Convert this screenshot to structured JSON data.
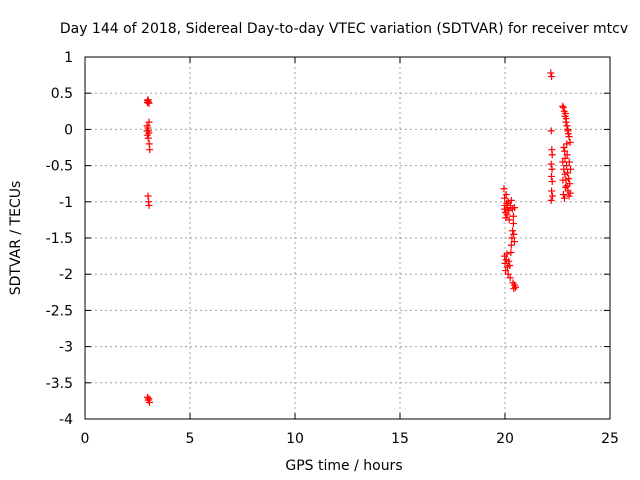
{
  "chart_data": {
    "type": "scatter",
    "title": "Day 144 of 2018, Sidereal Day-to-day VTEC variation (SDTVAR) for receiver mtcv",
    "xlabel": "GPS time / hours",
    "ylabel": "SDTVAR / TECUs",
    "xlim": [
      0,
      25
    ],
    "ylim": [
      -4,
      1
    ],
    "xticks": [
      0,
      5,
      10,
      15,
      20,
      25
    ],
    "yticks": [
      1,
      0.5,
      0,
      -0.5,
      -1,
      -1.5,
      -2,
      -2.5,
      -3,
      -3.5,
      -4
    ],
    "xtick_labels": [
      "0",
      "5",
      "10",
      "15",
      "20",
      "25"
    ],
    "ytick_labels": [
      "1",
      "0.5",
      "0",
      "-0.5",
      "-1",
      "-1.5",
      "-2",
      "-2.5",
      "-3",
      "-3.5",
      "-4"
    ],
    "grid": true,
    "marker": "+",
    "color": "#ff0000",
    "series": [
      {
        "name": "SDTVAR",
        "points": [
          [
            2.98,
            0.4
          ],
          [
            3.02,
            0.38
          ],
          [
            3.05,
            0.36
          ],
          [
            2.97,
            0.37
          ],
          [
            3.0,
            0.41
          ],
          [
            2.96,
            0.05
          ],
          [
            2.99,
            0.02
          ],
          [
            3.02,
            -0.02
          ],
          [
            3.05,
            0.1
          ],
          [
            2.97,
            -0.08
          ],
          [
            3.01,
            -0.12
          ],
          [
            3.04,
            -0.05
          ],
          [
            3.06,
            -0.2
          ],
          [
            3.08,
            -0.28
          ],
          [
            2.95,
            -0.02
          ],
          [
            3.0,
            -0.92
          ],
          [
            3.03,
            -1.0
          ],
          [
            3.05,
            -1.05
          ],
          [
            2.98,
            -3.7
          ],
          [
            3.01,
            -3.74
          ],
          [
            3.04,
            -3.72
          ],
          [
            3.07,
            -3.77
          ],
          [
            19.95,
            -0.82
          ],
          [
            19.98,
            -0.95
          ],
          [
            20.0,
            -1.05
          ],
          [
            20.02,
            -1.15
          ],
          [
            20.04,
            -1.22
          ],
          [
            19.97,
            -1.1
          ],
          [
            20.06,
            -0.9
          ],
          [
            20.08,
            -1.02
          ],
          [
            20.1,
            -1.18
          ],
          [
            20.12,
            -1.08
          ],
          [
            20.15,
            -1.0
          ],
          [
            20.18,
            -1.12
          ],
          [
            20.2,
            -1.25
          ],
          [
            20.25,
            -1.05
          ],
          [
            20.3,
            -0.98
          ],
          [
            20.35,
            -1.1
          ],
          [
            20.4,
            -1.2
          ],
          [
            20.45,
            -1.08
          ],
          [
            19.98,
            -1.75
          ],
          [
            20.0,
            -1.85
          ],
          [
            20.03,
            -1.95
          ],
          [
            20.06,
            -1.8
          ],
          [
            20.09,
            -1.72
          ],
          [
            20.12,
            -1.9
          ],
          [
            20.15,
            -2.0
          ],
          [
            20.18,
            -1.82
          ],
          [
            20.22,
            -1.88
          ],
          [
            20.25,
            -2.05
          ],
          [
            20.28,
            -1.7
          ],
          [
            20.3,
            -1.6
          ],
          [
            20.33,
            -1.5
          ],
          [
            20.36,
            -1.4
          ],
          [
            20.4,
            -1.3
          ],
          [
            20.42,
            -1.45
          ],
          [
            20.45,
            -1.55
          ],
          [
            20.38,
            -2.12
          ],
          [
            20.42,
            -2.2
          ],
          [
            20.45,
            -2.15
          ],
          [
            20.5,
            -2.18
          ],
          [
            22.18,
            0.78
          ],
          [
            22.22,
            0.73
          ],
          [
            22.2,
            -0.02
          ],
          [
            22.23,
            -0.28
          ],
          [
            22.25,
            -0.35
          ],
          [
            22.2,
            -0.48
          ],
          [
            22.24,
            -0.55
          ],
          [
            22.21,
            -0.65
          ],
          [
            22.25,
            -0.72
          ],
          [
            22.22,
            -0.85
          ],
          [
            22.26,
            -0.92
          ],
          [
            22.2,
            -0.98
          ],
          [
            22.75,
            0.32
          ],
          [
            22.78,
            0.3
          ],
          [
            22.82,
            0.25
          ],
          [
            22.86,
            0.18
          ],
          [
            22.9,
            0.1
          ],
          [
            22.95,
            0.05
          ],
          [
            23.0,
            -0.02
          ],
          [
            23.05,
            -0.1
          ],
          [
            23.1,
            -0.18
          ],
          [
            22.88,
            0.22
          ],
          [
            22.92,
            0.15
          ],
          [
            22.98,
            0.0
          ],
          [
            23.02,
            -0.06
          ],
          [
            22.75,
            -0.45
          ],
          [
            22.8,
            -0.55
          ],
          [
            22.85,
            -0.62
          ],
          [
            22.9,
            -0.7
          ],
          [
            22.95,
            -0.78
          ],
          [
            23.0,
            -0.85
          ],
          [
            23.05,
            -0.92
          ],
          [
            23.1,
            -0.88
          ],
          [
            22.78,
            -0.9
          ],
          [
            22.83,
            -0.95
          ],
          [
            22.88,
            -0.8
          ],
          [
            22.93,
            -0.5
          ],
          [
            22.98,
            -0.6
          ],
          [
            23.03,
            -0.68
          ],
          [
            23.08,
            -0.75
          ],
          [
            23.12,
            -0.55
          ],
          [
            22.76,
            -0.7
          ],
          [
            22.86,
            -0.4
          ],
          [
            22.96,
            -0.35
          ],
          [
            23.06,
            -0.45
          ],
          [
            22.8,
            -0.25
          ],
          [
            22.84,
            -0.3
          ],
          [
            22.94,
            -0.2
          ]
        ]
      }
    ]
  }
}
